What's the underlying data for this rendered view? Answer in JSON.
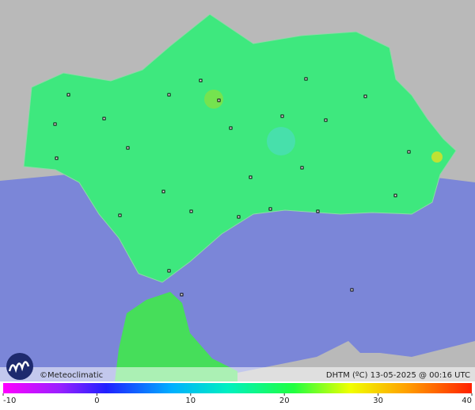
{
  "footer": {
    "brand": "©Meteoclimatic",
    "caption": "DHTM (ºC) 13-05-2025 @ 00:16 UTC"
  },
  "colorbar": {
    "ticks": [
      -10,
      0,
      10,
      20,
      30,
      40
    ]
  }
}
